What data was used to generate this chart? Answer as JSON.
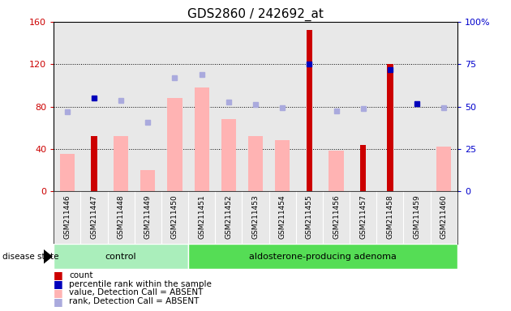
{
  "title": "GDS2860 / 242692_at",
  "samples": [
    "GSM211446",
    "GSM211447",
    "GSM211448",
    "GSM211449",
    "GSM211450",
    "GSM211451",
    "GSM211452",
    "GSM211453",
    "GSM211454",
    "GSM211455",
    "GSM211456",
    "GSM211457",
    "GSM211458",
    "GSM211459",
    "GSM211460"
  ],
  "n_control": 5,
  "n_adenoma": 10,
  "count": [
    null,
    52,
    null,
    null,
    null,
    null,
    null,
    null,
    null,
    152,
    null,
    44,
    120,
    null,
    null
  ],
  "percentile_rank": [
    null,
    88,
    null,
    null,
    null,
    null,
    null,
    null,
    null,
    120,
    null,
    null,
    115,
    83,
    null
  ],
  "value_absent": [
    35,
    null,
    52,
    20,
    88,
    98,
    68,
    52,
    48,
    null,
    38,
    null,
    null,
    null,
    42
  ],
  "rank_absent": [
    75,
    null,
    86,
    65,
    107,
    110,
    84,
    82,
    79,
    null,
    76,
    78,
    null,
    null,
    79
  ],
  "ylim_left": [
    0,
    160
  ],
  "ylim_right": [
    0,
    100
  ],
  "left_ticks": [
    0,
    40,
    80,
    120,
    160
  ],
  "right_ticks": [
    0,
    25,
    50,
    75,
    100
  ],
  "bar_color_count": "#cc0000",
  "bar_color_value_absent": "#ffb3b3",
  "dot_color_percentile": "#0000bb",
  "dot_color_rank_absent": "#aaaadd",
  "color_control": "#aaeebb",
  "color_adenoma": "#55dd55",
  "background_plot": "#e8e8e8",
  "ylabel_left_color": "#cc0000",
  "ylabel_right_color": "#0000cc"
}
